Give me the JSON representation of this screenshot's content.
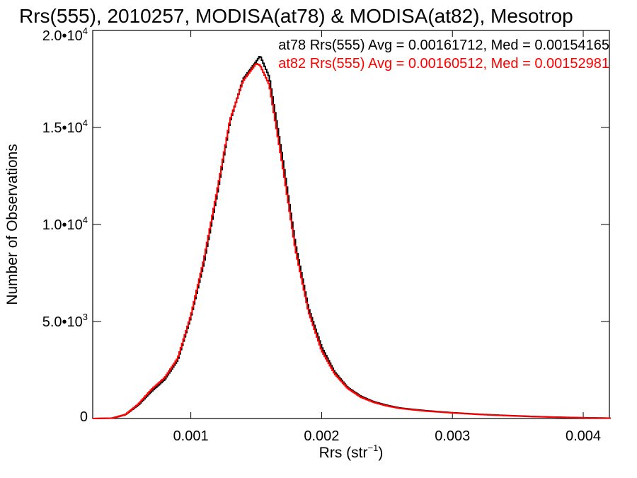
{
  "chart_data": {
    "type": "line",
    "title": "Rrs(555), 2010257, MODISA(at78) & MODISA(at82), Mesotrop",
    "xlabel": "Rrs (str",
    "xlabel_sup": "−1",
    "xlabel_close": ")",
    "ylabel": "Number of Observations",
    "xlim": [
      0.00025,
      0.0042
    ],
    "ylim": [
      0,
      20000
    ],
    "x_ticks": [
      {
        "value": 0.001,
        "label": "0.001"
      },
      {
        "value": 0.002,
        "label": "0.002"
      },
      {
        "value": 0.003,
        "label": "0.003"
      },
      {
        "value": 0.004,
        "label": "0.004"
      }
    ],
    "y_ticks": [
      {
        "value": 0,
        "mant": "0",
        "exp": ""
      },
      {
        "value": 5000,
        "mant": "5.0•10",
        "exp": "3"
      },
      {
        "value": 10000,
        "mant": "1.0•10",
        "exp": "4"
      },
      {
        "value": 15000,
        "mant": "1.5•10",
        "exp": "4"
      },
      {
        "value": 20000,
        "mant": "2.0•10",
        "exp": "4"
      }
    ],
    "annotations": [
      {
        "text": "at78 Rrs(555) Avg = 0.00161712, Med = 0.00154165",
        "color": "#000000"
      },
      {
        "text": "at82 Rrs(555) Avg = 0.00160512, Med = 0.00152981",
        "color": "#ff0000"
      }
    ],
    "x_profile": [
      0.00025,
      0.0004,
      0.0005,
      0.0006,
      0.0007,
      0.0008,
      0.0009,
      0.001,
      0.0011,
      0.0012,
      0.0013,
      0.0014,
      0.0015,
      0.00153,
      0.0016,
      0.0017,
      0.0018,
      0.0019,
      0.002,
      0.0021,
      0.0022,
      0.0023,
      0.0024,
      0.0025,
      0.0026,
      0.0028,
      0.003,
      0.0032,
      0.0034,
      0.0036,
      0.0038,
      0.004,
      0.0042
    ],
    "series": [
      {
        "name": "at78",
        "color": "#000000",
        "values": [
          0,
          20,
          200,
          700,
          1400,
          2000,
          3000,
          5200,
          8000,
          11500,
          15300,
          17500,
          18400,
          18700,
          17600,
          13500,
          9000,
          5700,
          3700,
          2400,
          1600,
          1150,
          860,
          680,
          540,
          400,
          300,
          220,
          160,
          110,
          70,
          40,
          20
        ]
      },
      {
        "name": "at82",
        "color": "#ff0000",
        "values": [
          0,
          20,
          200,
          750,
          1500,
          2100,
          3100,
          5300,
          8200,
          11700,
          15400,
          17400,
          18300,
          18200,
          17200,
          13100,
          8700,
          5500,
          3500,
          2300,
          1550,
          1100,
          830,
          650,
          520,
          380,
          290,
          210,
          150,
          100,
          65,
          35,
          18
        ]
      }
    ]
  }
}
